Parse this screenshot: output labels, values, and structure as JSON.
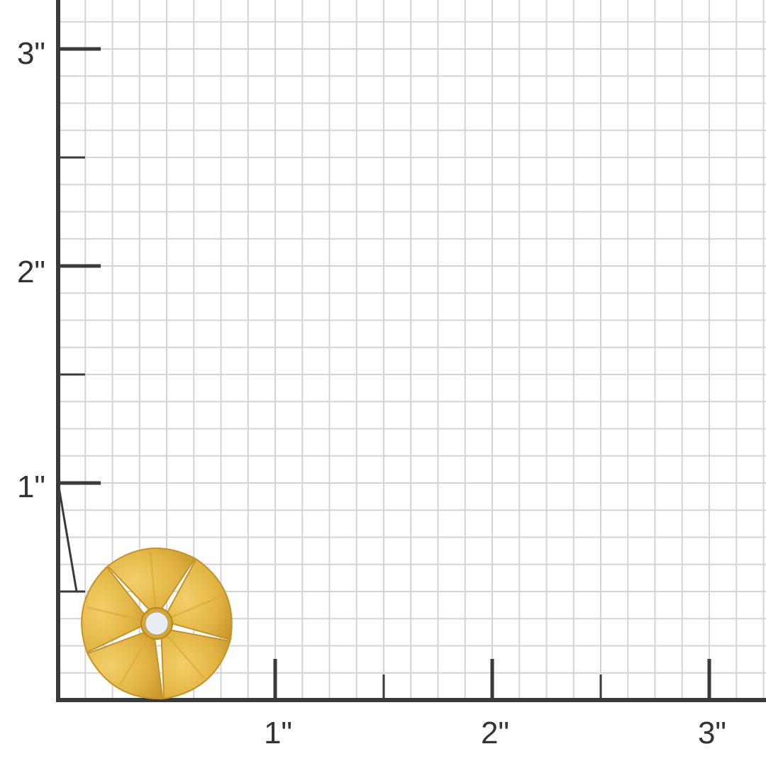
{
  "ruler": {
    "x_labels": [
      "1\"",
      "2\"",
      "3\""
    ],
    "y_labels": [
      "1\"",
      "2\"",
      "3\""
    ],
    "axis_color": "#3a3a3a",
    "grid_color": "#d4d4d4",
    "grid_divisions_per_inch": 8
  },
  "product": {
    "name_icon": "gold-flower-earring-with-diamond",
    "metal_color": "#e2b545",
    "stone_color": "#e8eef2"
  }
}
